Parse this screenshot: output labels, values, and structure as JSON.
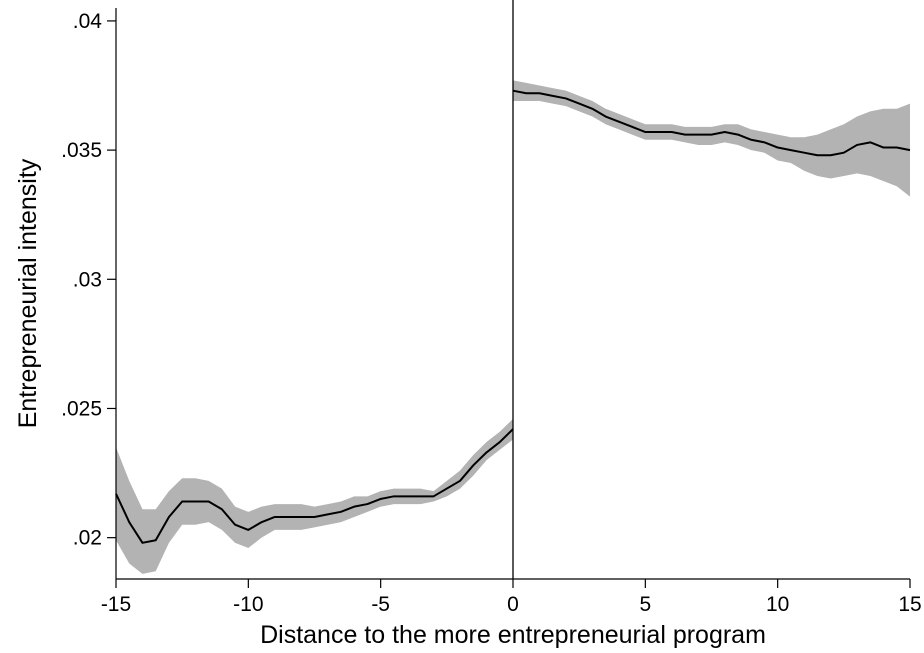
{
  "chart_data": {
    "type": "line",
    "title": "",
    "xlabel": "Distance to the more entrepreneurial program",
    "ylabel": "Entrepreneurial intensity",
    "xlim": [
      -15,
      15
    ],
    "ylim": [
      0.0184,
      0.0405
    ],
    "x_ticks": [
      -15,
      -10,
      -5,
      0,
      5,
      10,
      15
    ],
    "x_tick_labels": [
      "-15",
      "-10",
      "-5",
      "0",
      "5",
      "10",
      "15"
    ],
    "y_ticks": [
      0.02,
      0.025,
      0.03,
      0.035,
      0.04
    ],
    "y_tick_labels": [
      ".02",
      ".025",
      ".03",
      ".035",
      ".04"
    ],
    "cutoff_x": 0,
    "band_color": "#b3b3b3",
    "line_color": "#000000",
    "series": [
      {
        "segment": "left",
        "x": [
          -15,
          -14.5,
          -14,
          -13.5,
          -13,
          -12.5,
          -12,
          -11.5,
          -11,
          -10.5,
          -10,
          -9.5,
          -9,
          -8.5,
          -8,
          -7.5,
          -7,
          -6.5,
          -6,
          -5.5,
          -5,
          -4.5,
          -4,
          -3.5,
          -3,
          -2.5,
          -2,
          -1.5,
          -1,
          -0.5,
          0
        ],
        "y": [
          0.0217,
          0.0206,
          0.0198,
          0.0199,
          0.0208,
          0.0214,
          0.0214,
          0.0214,
          0.0211,
          0.0205,
          0.0203,
          0.0206,
          0.0208,
          0.0208,
          0.0208,
          0.0208,
          0.0209,
          0.021,
          0.0212,
          0.0213,
          0.0215,
          0.0216,
          0.0216,
          0.0216,
          0.0216,
          0.0219,
          0.0222,
          0.0228,
          0.0233,
          0.0237,
          0.0242
        ],
        "lower": [
          0.0199,
          0.019,
          0.0186,
          0.0187,
          0.0198,
          0.0205,
          0.0205,
          0.0206,
          0.0203,
          0.0198,
          0.0196,
          0.02,
          0.0203,
          0.0203,
          0.0203,
          0.0204,
          0.0205,
          0.0206,
          0.0208,
          0.021,
          0.0212,
          0.0213,
          0.0213,
          0.0213,
          0.0214,
          0.0216,
          0.0219,
          0.0224,
          0.023,
          0.0234,
          0.0238
        ],
        "upper": [
          0.0235,
          0.0222,
          0.0211,
          0.0211,
          0.0218,
          0.0223,
          0.0223,
          0.0222,
          0.0219,
          0.0212,
          0.021,
          0.0212,
          0.0213,
          0.0213,
          0.0213,
          0.0212,
          0.0213,
          0.0214,
          0.0216,
          0.0216,
          0.0218,
          0.0219,
          0.0219,
          0.0219,
          0.0218,
          0.0222,
          0.0226,
          0.0232,
          0.0237,
          0.0241,
          0.0246
        ]
      },
      {
        "segment": "right",
        "x": [
          0,
          0.5,
          1,
          1.5,
          2,
          2.5,
          3,
          3.5,
          4,
          4.5,
          5,
          5.5,
          6,
          6.5,
          7,
          7.5,
          8,
          8.5,
          9,
          9.5,
          10,
          10.5,
          11,
          11.5,
          12,
          12.5,
          13,
          13.5,
          14,
          14.5,
          15
        ],
        "y": [
          0.0373,
          0.0372,
          0.0372,
          0.0371,
          0.037,
          0.0368,
          0.0366,
          0.0363,
          0.0361,
          0.0359,
          0.0357,
          0.0357,
          0.0357,
          0.0356,
          0.0356,
          0.0356,
          0.0357,
          0.0356,
          0.0354,
          0.0353,
          0.0351,
          0.035,
          0.0349,
          0.0348,
          0.0348,
          0.0349,
          0.0352,
          0.0353,
          0.0351,
          0.0351,
          0.035
        ],
        "lower": [
          0.0369,
          0.0369,
          0.0369,
          0.0368,
          0.0367,
          0.0365,
          0.0363,
          0.036,
          0.0358,
          0.0356,
          0.0354,
          0.0354,
          0.0354,
          0.0353,
          0.0352,
          0.0352,
          0.0353,
          0.0352,
          0.035,
          0.0349,
          0.0346,
          0.0345,
          0.0342,
          0.034,
          0.0339,
          0.034,
          0.0341,
          0.034,
          0.0338,
          0.0336,
          0.0332
        ],
        "upper": [
          0.0377,
          0.0376,
          0.0375,
          0.0374,
          0.0373,
          0.0371,
          0.0369,
          0.0366,
          0.0364,
          0.0362,
          0.036,
          0.036,
          0.036,
          0.0359,
          0.0359,
          0.0359,
          0.036,
          0.036,
          0.0358,
          0.0357,
          0.0356,
          0.0355,
          0.0355,
          0.0356,
          0.0358,
          0.036,
          0.0363,
          0.0365,
          0.0366,
          0.0366,
          0.0368
        ]
      }
    ]
  }
}
